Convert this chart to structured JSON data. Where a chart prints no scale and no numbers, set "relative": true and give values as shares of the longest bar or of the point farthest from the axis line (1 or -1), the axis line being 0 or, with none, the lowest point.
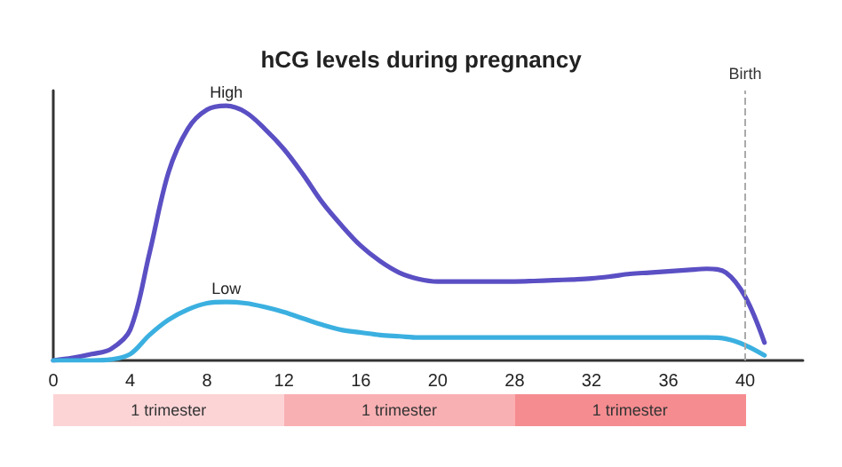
{
  "chart_data": {
    "type": "line",
    "title": "hCG levels during pregnancy",
    "relative": true,
    "categories": [
      "0",
      null,
      null,
      null,
      "4",
      null,
      null,
      null,
      "8",
      null,
      null,
      null,
      "12",
      null,
      null,
      null,
      "16",
      null,
      null,
      null,
      "20",
      null,
      null,
      null,
      "28",
      null,
      null,
      null,
      "32",
      null,
      null,
      null,
      "36",
      null,
      null,
      null,
      "40",
      null,
      null,
      null
    ],
    "series": [
      {
        "name": "High",
        "color": "#5b4fc4",
        "values": [
          0,
          0.01,
          0.025,
          0.045,
          0.12,
          0.42,
          0.74,
          0.91,
          0.985,
          1,
          0.975,
          0.91,
          0.83,
          0.73,
          0.62,
          0.53,
          0.45,
          0.39,
          0.345,
          0.32,
          0.31,
          0.31,
          0.31,
          0.31,
          0.31,
          0.312,
          0.315,
          0.318,
          0.322,
          0.33,
          0.34,
          0.345,
          0.35,
          0.355,
          0.36,
          0.345,
          0.25,
          0.07,
          null,
          null
        ]
      },
      {
        "name": "Low",
        "color": "#3bb0e0",
        "values": [
          0,
          0,
          0,
          0.004,
          0.025,
          0.1,
          0.16,
          0.2,
          0.225,
          0.23,
          0.225,
          0.21,
          0.19,
          0.165,
          0.14,
          0.12,
          0.11,
          0.1,
          0.095,
          0.09,
          0.09,
          0.09,
          0.09,
          0.09,
          0.09,
          0.09,
          0.09,
          0.09,
          0.09,
          0.09,
          0.09,
          0.09,
          0.09,
          0.09,
          0.09,
          0.085,
          0.06,
          0.02,
          null,
          null
        ]
      }
    ],
    "ref_lines": [
      {
        "axis": "x",
        "value": "40",
        "label": "Birth",
        "color": "#aaaaaa",
        "line_style": "dashed"
      }
    ],
    "annotations": [
      "1 trimester",
      "1 trimester",
      "1 trimester"
    ],
    "legend": false,
    "grid": false,
    "marker": "none",
    "line_style": "solid"
  }
}
